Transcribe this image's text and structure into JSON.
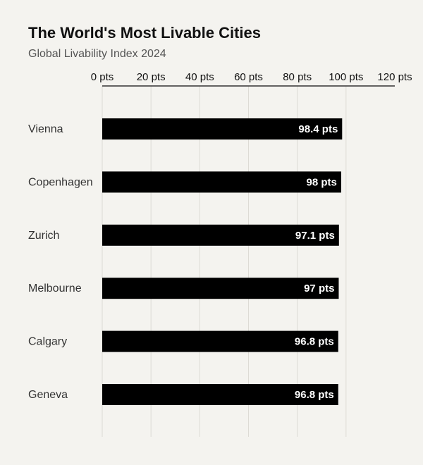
{
  "chart_data": {
    "type": "bar",
    "orientation": "horizontal",
    "title": "The World's Most Livable Cities",
    "subtitle": "Global Livability Index 2024",
    "xlabel": "",
    "ylabel": "",
    "categories": [
      "Vienna",
      "Copenhagen",
      "Zurich",
      "Melbourne",
      "Calgary",
      "Geneva"
    ],
    "values": [
      98.4,
      98,
      97.1,
      97,
      96.8,
      96.8
    ],
    "data_labels": [
      "98.4 pts",
      "98 pts",
      "97.1 pts",
      "97 pts",
      "96.8 pts",
      "96.8 pts"
    ],
    "xlim": [
      0,
      120
    ],
    "ticks": [
      0,
      20,
      40,
      60,
      80,
      100,
      120
    ],
    "tick_labels": [
      "0 pts",
      "20 pts",
      "40 pts",
      "60 pts",
      "80 pts",
      "100 pts",
      "120 pts"
    ],
    "axis_position": "top",
    "grid": true,
    "legend": "none",
    "colors": {
      "bar": "#000000",
      "background": "#f4f3ef",
      "grid": "#dddbd5",
      "axis": "#333333"
    }
  }
}
